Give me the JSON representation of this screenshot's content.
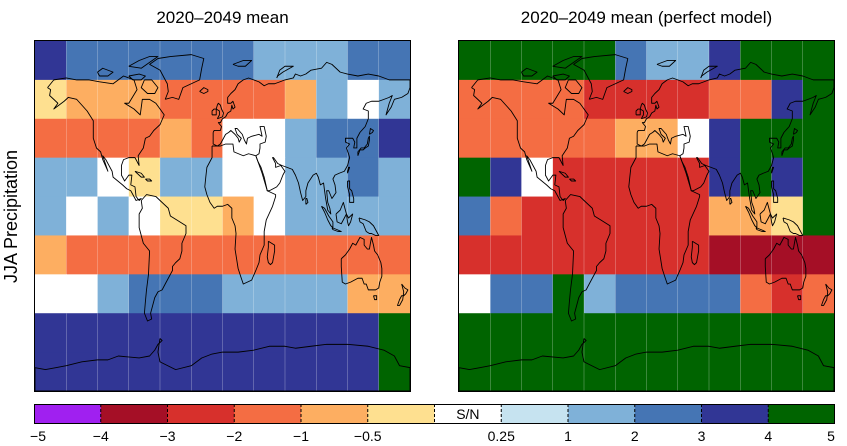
{
  "panels": [
    {
      "title": "2020–2049 mean",
      "grid": [
        [
          3,
          2,
          2,
          2,
          2,
          2,
          2,
          1,
          1,
          1,
          2,
          2
        ],
        [
          -0.5,
          -1,
          -1,
          -1,
          -2,
          -2,
          -2,
          -2,
          -1,
          1,
          0,
          1
        ],
        [
          -2,
          -2,
          -2,
          -2,
          -1,
          -2,
          0,
          0,
          1,
          2,
          2,
          3
        ],
        [
          1,
          1,
          0,
          -0.5,
          1,
          1,
          0,
          0,
          1,
          1,
          2,
          1
        ],
        [
          1,
          0,
          1,
          0,
          -0.5,
          -0.5,
          -1,
          0,
          1,
          1,
          1,
          1
        ],
        [
          -1,
          -2,
          -2,
          -2,
          -2,
          -2,
          -2,
          -2,
          -2,
          -2,
          -2,
          -2
        ],
        [
          0,
          0,
          1,
          2,
          2,
          2,
          1,
          1,
          1,
          1,
          -1,
          -1
        ],
        [
          3,
          3,
          3,
          3,
          3,
          3,
          3,
          3,
          3,
          3,
          3,
          4
        ],
        [
          3,
          3,
          3,
          3,
          3,
          3,
          3,
          3,
          3,
          3,
          3,
          4
        ]
      ]
    },
    {
      "title": "2020–2049 mean (perfect model)",
      "grid": [
        [
          5,
          5,
          5,
          5,
          5,
          2,
          1,
          1,
          3,
          5,
          5,
          5
        ],
        [
          -2,
          -2,
          -2,
          -2,
          -3,
          -3,
          -3,
          -3,
          -2,
          -2,
          3,
          5
        ],
        [
          -2,
          -2,
          -2,
          -2,
          -2,
          -1,
          -1,
          0,
          3,
          4,
          5,
          4
        ],
        [
          5,
          3,
          0,
          -3,
          -3,
          -3,
          -3,
          -3,
          3,
          4,
          3,
          4
        ],
        [
          2,
          -2,
          -3,
          -3,
          -3,
          -3,
          -3,
          -3,
          -1,
          -1,
          -0.5,
          4
        ],
        [
          -3,
          -3,
          -3,
          -3,
          -3,
          -3,
          -3,
          -3,
          -4,
          -4,
          -4,
          -4
        ],
        [
          0,
          2,
          2,
          4,
          1,
          2,
          2,
          2,
          2,
          -2,
          -3,
          -2
        ],
        [
          4,
          5,
          5,
          5,
          5,
          4,
          4,
          4,
          4,
          4,
          4,
          4
        ],
        [
          4,
          5,
          5,
          5,
          5,
          4,
          4,
          4,
          4,
          4,
          4,
          4
        ]
      ]
    }
  ],
  "row_label": "JJA Precipitation",
  "colorbar": {
    "label": "S/N",
    "ticks": [
      "−5",
      "−4",
      "−3",
      "−2",
      "−1",
      "−0.5",
      "0.25",
      "1",
      "2",
      "3",
      "4",
      "5"
    ],
    "segments": [
      {
        "from": -5,
        "to": -4,
        "color": "#a020f0"
      },
      {
        "from": -4,
        "to": -3,
        "color": "#a50f26"
      },
      {
        "from": -3,
        "to": -2,
        "color": "#d7302c"
      },
      {
        "from": -2,
        "to": -1,
        "color": "#f46d43"
      },
      {
        "from": -1,
        "to": -0.5,
        "color": "#fdae61"
      },
      {
        "from": -0.5,
        "to": -0.25,
        "color": "#fee090"
      },
      {
        "from": -0.25,
        "to": 0.25,
        "color": "#ffffff"
      },
      {
        "from": 0.25,
        "to": 1,
        "color": "#c6e3f0"
      },
      {
        "from": 1,
        "to": 2,
        "color": "#7fb1d8"
      },
      {
        "from": 2,
        "to": 3,
        "color": "#4575b4"
      },
      {
        "from": 3,
        "to": 4,
        "color": "#313695"
      },
      {
        "from": 4,
        "to": 5,
        "color": "#006400"
      }
    ]
  },
  "map": {
    "lon_range": [
      -180,
      180
    ],
    "lat_range": [
      -90,
      90
    ],
    "coastline_color": "#000000",
    "gridline_color": "#ffffff"
  }
}
